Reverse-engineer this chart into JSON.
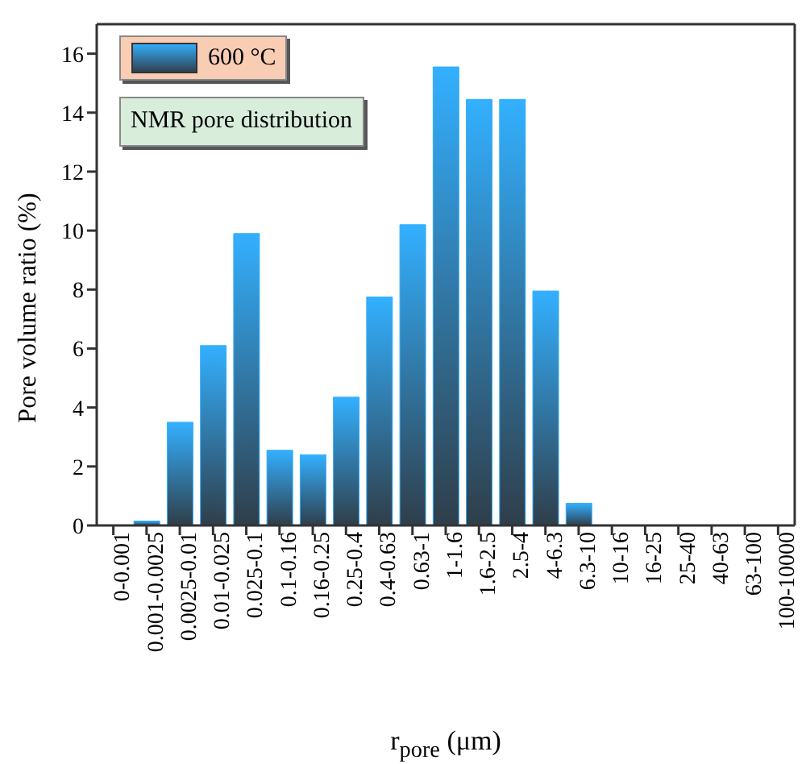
{
  "chart_data": {
    "type": "bar",
    "xlabel": "r$_{pore}$ (μm)",
    "ylabel": "Pore volume ratio (%)",
    "categories": [
      "0-0.001",
      "0.001-0.0025",
      "0.0025-0.01",
      "0.01-0.025",
      "0.025-0.1",
      "0.1-0.16",
      "0.16-0.25",
      "0.25-0.4",
      "0.4-0.63",
      "0.63-1",
      "1-1.6",
      "1.6-2.5",
      "2.5-4",
      "4-6.3",
      "6.3-10",
      "10-16",
      "16-25",
      "25-40",
      "40-63",
      "63-100",
      "100-10000"
    ],
    "series": [
      {
        "name": "600 °C",
        "color": "#33b0ff",
        "values": [
          0,
          0.15,
          3.5,
          6.1,
          9.9,
          2.55,
          2.4,
          4.35,
          7.75,
          10.2,
          15.55,
          14.45,
          14.45,
          7.95,
          0.75,
          0,
          0,
          0,
          0,
          0,
          0
        ]
      }
    ],
    "ylim": [
      0,
      17
    ],
    "yticks": [
      0,
      2,
      4,
      6,
      8,
      10,
      12,
      14,
      16
    ],
    "grid": false,
    "legend": "top left",
    "annotations": [
      "NMR pore distribution"
    ]
  }
}
